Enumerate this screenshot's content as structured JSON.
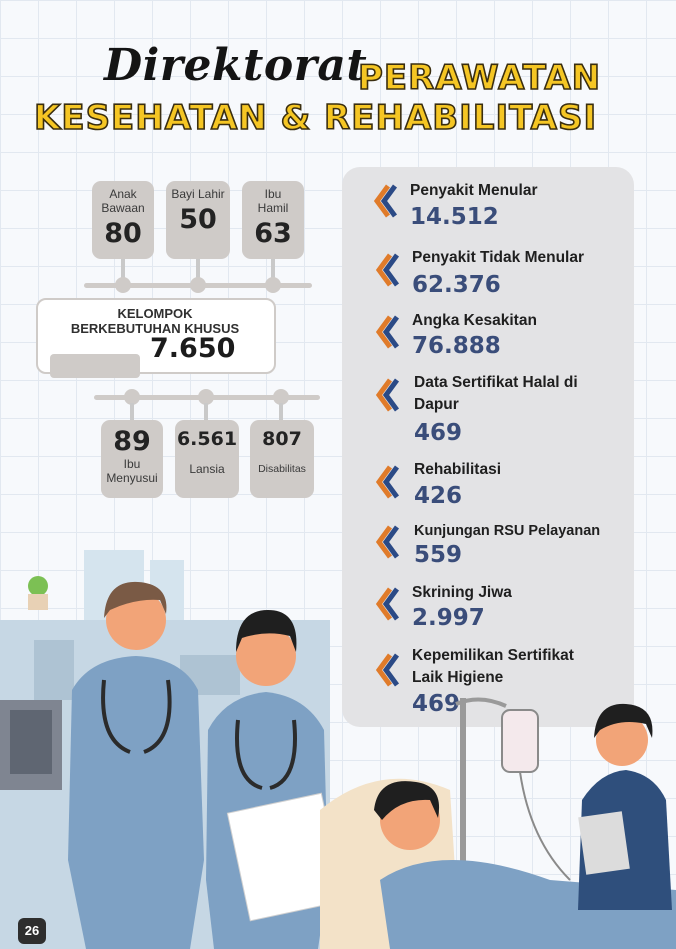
{
  "title": {
    "script": "Direktorat",
    "line1": "PERAWATAN",
    "line2": "KESEHATAN & REHABILITASI"
  },
  "top_cards": [
    {
      "label_line1": "Anak",
      "label_line2": "Bawaan",
      "value": "80"
    },
    {
      "label_line1": "Bayi Lahir",
      "label_line2": "",
      "value": "50"
    },
    {
      "label_line1": "Ibu",
      "label_line2": "Hamil",
      "value": "63"
    }
  ],
  "center": {
    "label_line1": "KELOMPOK",
    "label_line2": "BERKEBUTUHAN KHUSUS",
    "value": "7.650"
  },
  "bottom_cards": [
    {
      "value": "89",
      "label_line1": "Ibu",
      "label_line2": "Menyusui"
    },
    {
      "value": "6.561",
      "label_line1": "Lansia",
      "label_line2": ""
    },
    {
      "value": "807",
      "label_line1": "Disabilitas",
      "label_line2": ""
    }
  ],
  "stats": [
    {
      "label": "Penyakit Menular",
      "value": "14.512"
    },
    {
      "label": "Penyakit Tidak Menular",
      "value": "62.376"
    },
    {
      "label": "Angka Kesakitan",
      "value": "76.888"
    },
    {
      "label": "Data Sertifikat Halal di Dapur",
      "value": "469"
    },
    {
      "label": "Rehabilitasi",
      "value": "426"
    },
    {
      "label": "Kunjungan RSU Pelayanan",
      "value": "559"
    },
    {
      "label": "Skrining Jiwa",
      "value": "2.997"
    },
    {
      "label": "Kepemilikan Sertifikat Laik Higiene",
      "value": "469"
    }
  ],
  "page_number": "26",
  "colors": {
    "accent_yellow": "#f5c624",
    "chevron_orange": "#e07b2a",
    "chevron_blue": "#2b4a86",
    "value_navy": "#3a4d7a",
    "scrub_blue": "#7ea1c4"
  },
  "icons": [
    "chevron-icon",
    "nurse-illustration",
    "patient-bed-illustration",
    "cactus-icon"
  ]
}
